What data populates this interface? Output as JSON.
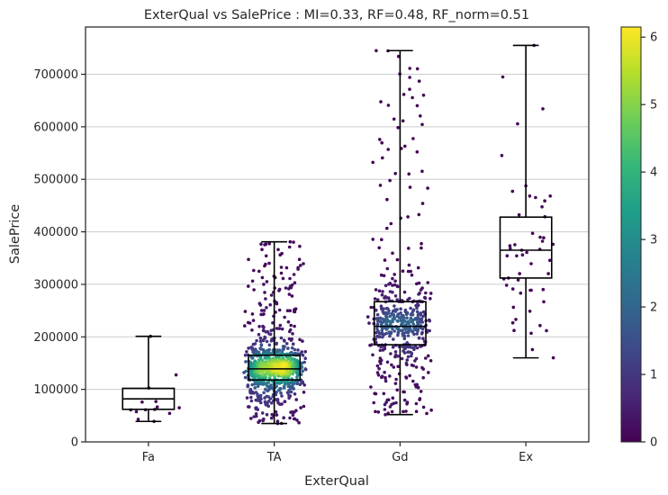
{
  "chart_data": {
    "type": "box",
    "title": "ExterQual vs SalePrice : MI=0.33, RF=0.48, RF_norm=0.51",
    "xlabel": "ExterQual",
    "ylabel": "SalePrice",
    "ylim": [
      0,
      790000
    ],
    "yticks": [
      0,
      100000,
      200000,
      300000,
      400000,
      500000,
      600000,
      700000
    ],
    "ytick_labels": [
      "0",
      "100000",
      "200000",
      "300000",
      "400000",
      "500000",
      "600000",
      "700000"
    ],
    "grid": "horizontal",
    "categories": [
      "Fa",
      "TA",
      "Gd",
      "Ex"
    ],
    "boxes": [
      {
        "category": "Fa",
        "whisker_low": 39000,
        "q1": 62000,
        "median": 82000,
        "q3": 102000,
        "whisker_high": 201000
      },
      {
        "category": "TA",
        "whisker_low": 35000,
        "q1": 118000,
        "median": 139000,
        "q3": 165000,
        "whisker_high": 381000
      },
      {
        "category": "Gd",
        "whisker_low": 52000,
        "q1": 185000,
        "median": 220000,
        "q3": 267000,
        "whisker_high": 745000
      },
      {
        "category": "Ex",
        "whisker_low": 160000,
        "q1": 312000,
        "median": 365000,
        "q3": 428000,
        "whisker_high": 755000
      }
    ],
    "points_overlay": {
      "description": "jittered individual sales colored by local point density",
      "counts": [
        14,
        906,
        488,
        52
      ],
      "colormap": "viridis"
    },
    "colorbar": {
      "min": 0,
      "max": 6.15,
      "ticks": [
        0,
        1,
        2,
        3,
        4,
        5,
        6
      ],
      "tick_labels": [
        "0",
        "1",
        "2",
        "3",
        "4",
        "5",
        "6"
      ]
    }
  },
  "colors": {
    "box_edge": "#000000",
    "grid": "#cccccc",
    "spine": "#262626",
    "viridis": [
      "#440154",
      "#482878",
      "#3e4989",
      "#31688e",
      "#26828e",
      "#1f9e89",
      "#35b779",
      "#6ece58",
      "#b5de2b",
      "#fde725"
    ]
  }
}
